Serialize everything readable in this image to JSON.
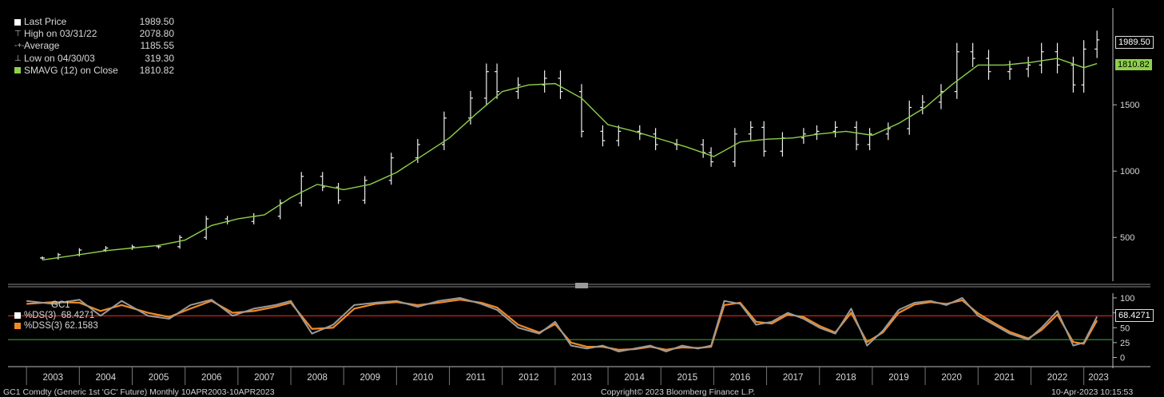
{
  "legend": {
    "last_price": {
      "label": "Last Price",
      "value": "1989.50",
      "color": "#ffffff"
    },
    "high": {
      "label": "High on 03/31/22",
      "value": "2078.80"
    },
    "average": {
      "label": "Average",
      "value": "1185.55"
    },
    "low": {
      "label": "Low on 04/30/03",
      "value": "319.30"
    },
    "smavg": {
      "label": "SMAVG (12)  on Close",
      "value": "1810.82",
      "color": "#8ed04a"
    }
  },
  "stoch_legend": {
    "title": "GC1",
    "ds": {
      "label": "%DS(3)",
      "value": "68.4271",
      "color": "#ffffff"
    },
    "dss": {
      "label": "%DSS(3)",
      "value": "62.1583",
      "color": "#f08a24"
    }
  },
  "badges": {
    "last_price": "1989.50",
    "smavg": "1810.82",
    "stoch": "68.4271"
  },
  "footer": {
    "left": "GC1 Comdty (Generic 1st 'GC' Future)  Monthly 10APR2003-10APR2023",
    "center": "Copyright© 2023 Bloomberg Finance L.P.",
    "right": "10-Apr-2023 10:15:53"
  },
  "chart_data": [
    {
      "type": "line",
      "title": "",
      "x_ticks": [
        "2003",
        "2004",
        "2005",
        "2006",
        "2007",
        "2008",
        "2009",
        "2010",
        "2011",
        "2012",
        "2013",
        "2014",
        "2015",
        "2016",
        "2017",
        "2018",
        "2019",
        "2020",
        "2021",
        "2022",
        "2023"
      ],
      "y_ticks": [
        500,
        1000,
        1500
      ],
      "ylim": [
        170,
        2230
      ],
      "series": [
        {
          "name": "Last Price",
          "style": "ohlc-bars",
          "color": "#ffffff",
          "x": [
            2003.3,
            2003.6,
            2004.0,
            2004.5,
            2005.0,
            2005.5,
            2005.9,
            2006.4,
            2006.8,
            2007.3,
            2007.8,
            2008.2,
            2008.6,
            2008.9,
            2009.4,
            2009.9,
            2010.4,
            2010.9,
            2011.4,
            2011.7,
            2011.9,
            2012.3,
            2012.8,
            2013.1,
            2013.5,
            2013.9,
            2014.2,
            2014.6,
            2014.9,
            2015.3,
            2015.8,
            2015.95,
            2016.4,
            2016.7,
            2016.95,
            2017.3,
            2017.7,
            2017.95,
            2018.3,
            2018.7,
            2018.95,
            2019.3,
            2019.7,
            2019.95,
            2020.3,
            2020.6,
            2020.9,
            2021.2,
            2021.6,
            2021.95,
            2022.2,
            2022.5,
            2022.8,
            2023.0,
            2023.25
          ],
          "y": [
            345,
            370,
            405,
            420,
            430,
            430,
            500,
            640,
            620,
            660,
            760,
            960,
            880,
            780,
            930,
            1100,
            1200,
            1400,
            1550,
            1750,
            1600,
            1650,
            1700,
            1600,
            1300,
            1230,
            1300,
            1280,
            1200,
            1200,
            1140,
            1070,
            1280,
            1330,
            1150,
            1250,
            1280,
            1300,
            1330,
            1200,
            1280,
            1320,
            1480,
            1520,
            1600,
            1900,
            1850,
            1750,
            1770,
            1800,
            1900,
            1800,
            1650,
            1920,
            1989.5
          ]
        },
        {
          "name": "SMAVG (12) on Close",
          "color": "#8ed04a",
          "x": [
            2003.3,
            2004.0,
            2004.5,
            2005.0,
            2005.5,
            2006.0,
            2006.5,
            2007.0,
            2007.5,
            2008.0,
            2008.5,
            2009.0,
            2009.5,
            2010.0,
            2010.5,
            2011.0,
            2011.5,
            2012.0,
            2012.5,
            2013.0,
            2013.5,
            2014.0,
            2014.5,
            2015.0,
            2015.5,
            2016.0,
            2016.5,
            2017.0,
            2017.5,
            2018.0,
            2018.5,
            2019.0,
            2019.5,
            2020.0,
            2020.5,
            2021.0,
            2021.5,
            2022.0,
            2022.5,
            2023.0,
            2023.25
          ],
          "y": [
            330,
            370,
            400,
            420,
            440,
            480,
            590,
            640,
            670,
            800,
            900,
            860,
            900,
            990,
            1120,
            1250,
            1430,
            1600,
            1650,
            1660,
            1550,
            1350,
            1300,
            1240,
            1180,
            1110,
            1220,
            1240,
            1250,
            1280,
            1300,
            1270,
            1360,
            1480,
            1650,
            1800,
            1800,
            1820,
            1850,
            1780,
            1810.82
          ]
        }
      ]
    },
    {
      "type": "line",
      "title": "GC1",
      "y_ticks": [
        0,
        25,
        50,
        75,
        100
      ],
      "ylim": [
        -10,
        108
      ],
      "reference_lines": [
        {
          "value": 70,
          "color": "#d0231f"
        },
        {
          "value": 30,
          "color": "#2ea02e"
        }
      ],
      "series": [
        {
          "name": "%DS(3)",
          "color": "#ffffff",
          "x": [
            2003.0,
            2003.5,
            2004.0,
            2004.4,
            2004.8,
            2005.3,
            2005.7,
            2006.1,
            2006.5,
            2006.9,
            2007.3,
            2007.7,
            2008.0,
            2008.4,
            2008.8,
            2009.2,
            2009.6,
            2010.0,
            2010.4,
            2010.8,
            2011.2,
            2011.6,
            2011.9,
            2012.3,
            2012.7,
            2013.0,
            2013.3,
            2013.6,
            2013.9,
            2014.2,
            2014.5,
            2014.8,
            2015.1,
            2015.4,
            2015.7,
            2015.95,
            2016.2,
            2016.5,
            2016.8,
            2017.1,
            2017.4,
            2017.7,
            2018.0,
            2018.3,
            2018.6,
            2018.9,
            2019.2,
            2019.5,
            2019.8,
            2020.1,
            2020.4,
            2020.7,
            2021.0,
            2021.3,
            2021.6,
            2021.95,
            2022.2,
            2022.5,
            2022.8,
            2023.0,
            2023.25
          ],
          "y": [
            95,
            90,
            97,
            70,
            95,
            70,
            65,
            88,
            97,
            70,
            82,
            88,
            95,
            40,
            55,
            88,
            92,
            95,
            85,
            95,
            100,
            90,
            80,
            50,
            40,
            60,
            20,
            15,
            20,
            10,
            15,
            20,
            10,
            20,
            15,
            20,
            95,
            90,
            55,
            60,
            75,
            65,
            50,
            40,
            82,
            20,
            45,
            80,
            92,
            95,
            88,
            100,
            70,
            55,
            40,
            30,
            50,
            78,
            20,
            25,
            68.43
          ]
        },
        {
          "name": "%DSS(3)",
          "color": "#f08a24",
          "x": [
            2003.0,
            2003.5,
            2004.0,
            2004.4,
            2004.8,
            2005.3,
            2005.7,
            2006.1,
            2006.5,
            2006.9,
            2007.3,
            2007.7,
            2008.0,
            2008.4,
            2008.8,
            2009.2,
            2009.6,
            2010.0,
            2010.4,
            2010.8,
            2011.2,
            2011.6,
            2011.9,
            2012.3,
            2012.7,
            2013.0,
            2013.3,
            2013.6,
            2013.9,
            2014.2,
            2014.5,
            2014.8,
            2015.1,
            2015.4,
            2015.7,
            2015.95,
            2016.2,
            2016.5,
            2016.8,
            2017.1,
            2017.4,
            2017.7,
            2018.0,
            2018.3,
            2018.6,
            2018.9,
            2019.2,
            2019.5,
            2019.8,
            2020.1,
            2020.4,
            2020.7,
            2021.0,
            2021.3,
            2021.6,
            2021.95,
            2022.2,
            2022.5,
            2022.8,
            2023.0,
            2023.25
          ],
          "y": [
            90,
            93,
            92,
            78,
            88,
            75,
            68,
            82,
            95,
            75,
            78,
            85,
            92,
            48,
            50,
            82,
            90,
            93,
            88,
            92,
            97,
            92,
            84,
            55,
            42,
            56,
            25,
            18,
            18,
            13,
            14,
            18,
            13,
            17,
            16,
            18,
            88,
            92,
            60,
            57,
            72,
            68,
            53,
            42,
            75,
            26,
            42,
            75,
            89,
            93,
            90,
            96,
            74,
            58,
            43,
            32,
            46,
            72,
            26,
            23,
            62.16
          ]
        }
      ]
    }
  ]
}
